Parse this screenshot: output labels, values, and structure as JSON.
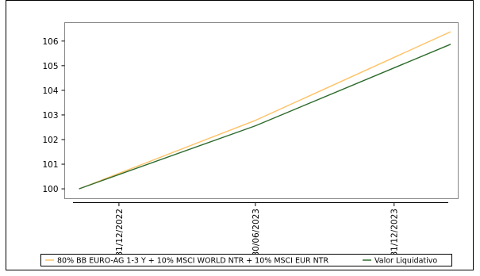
{
  "chart_data": {
    "type": "line",
    "title": "",
    "xlabel": "",
    "ylabel": "",
    "x": [
      "2022-11-08",
      "2023-06-30",
      "2024-03-15"
    ],
    "x_ticks": [
      {
        "label": "31/12/2022",
        "date": "2022-12-31"
      },
      {
        "label": "30/06/2023",
        "date": "2023-06-30"
      },
      {
        "label": "31/12/2023",
        "date": "2023-12-31"
      }
    ],
    "xlim": [
      "2022-10-20",
      "2024-03-25"
    ],
    "ylim": [
      99.6,
      106.75
    ],
    "y_ticks": [
      100,
      101,
      102,
      103,
      104,
      105,
      106
    ],
    "grid": false,
    "legend_position": "bottom",
    "series": [
      {
        "name": "80% BB EURO-AG 1-3 Y + 10% MSCI WORLD NTR + 10% MSCI EUR NTR",
        "color": "#ffc266",
        "values": [
          100.0,
          102.78,
          106.38
        ]
      },
      {
        "name": "Valor Liquidativo",
        "color": "#2e6b2e",
        "values": [
          100.0,
          102.56,
          105.87
        ]
      }
    ]
  }
}
